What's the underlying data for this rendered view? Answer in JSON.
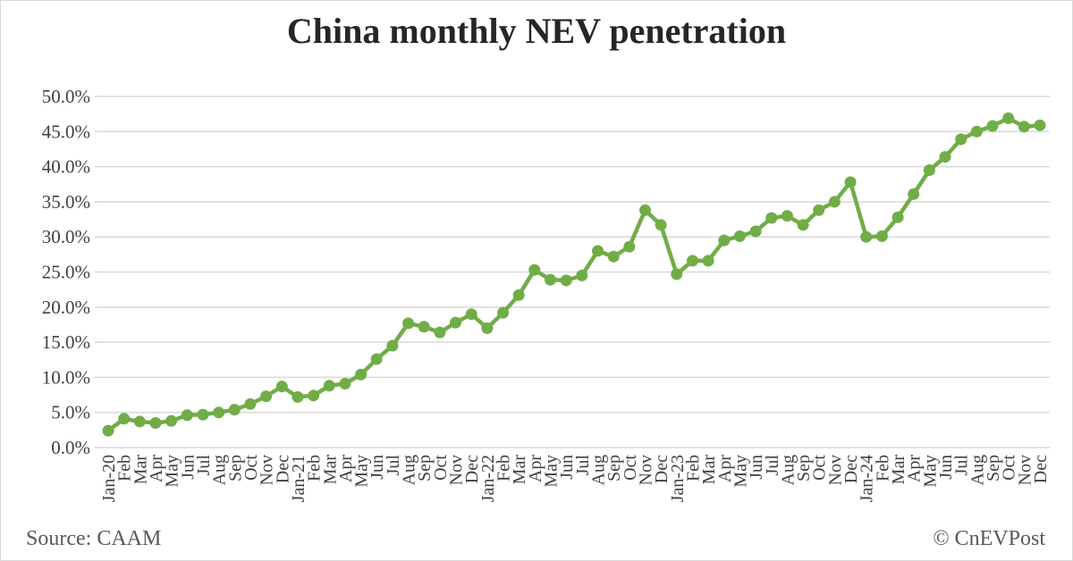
{
  "chart_data": {
    "type": "line",
    "title": "China monthly NEV penetration",
    "source_label": "Source: CAAM",
    "copyright_label": "© CnEVPost",
    "series": [
      {
        "name": "NEV penetration",
        "values": [
          2.4,
          4.1,
          3.7,
          3.5,
          3.8,
          4.6,
          4.7,
          5.0,
          5.4,
          6.2,
          7.3,
          8.7,
          7.2,
          7.4,
          8.8,
          9.1,
          10.4,
          12.6,
          14.5,
          17.7,
          17.2,
          16.4,
          17.8,
          19.0,
          17.0,
          19.2,
          21.7,
          25.3,
          23.9,
          23.8,
          24.5,
          28.0,
          27.2,
          28.6,
          33.8,
          31.7,
          24.7,
          26.6,
          26.6,
          29.5,
          30.1,
          30.8,
          32.7,
          33.0,
          31.7,
          33.8,
          35.0,
          37.8,
          30.0,
          30.1,
          32.8,
          36.1,
          39.5,
          41.4,
          43.9,
          45.0,
          45.8,
          46.9,
          45.7,
          45.9
        ]
      }
    ],
    "categories": [
      "Jan-20",
      "Feb",
      "Mar",
      "Apr",
      "May",
      "Jun",
      "Jul",
      "Aug",
      "Sep",
      "Oct",
      "Nov",
      "Dec",
      "Jan-21",
      "Feb",
      "Mar",
      "Apr",
      "May",
      "Jun",
      "Jul",
      "Aug",
      "Sep",
      "Oct",
      "Nov",
      "Dec",
      "Jan-22",
      "Feb",
      "Mar",
      "Apr",
      "May",
      "Jun",
      "Jul",
      "Aug",
      "Sep",
      "Oct",
      "Nov",
      "Dec",
      "Jan-23",
      "Feb",
      "Mar",
      "Apr",
      "May",
      "Jun",
      "Jul",
      "Aug",
      "Sep",
      "Oct",
      "Nov",
      "Dec",
      "Jan-24",
      "Feb",
      "Mar",
      "Apr",
      "May",
      "Jun",
      "Jul",
      "Aug",
      "Sep",
      "Oct",
      "Nov",
      "Dec"
    ],
    "xlabel": "",
    "ylabel": "",
    "ylim": [
      0,
      50
    ],
    "ytick_step": 5,
    "ytick_suffix": "%",
    "ytick_decimals": 1,
    "grid": true,
    "legend_position": "none",
    "marker": "circle",
    "colors": {
      "line": "#70ad47",
      "grid": "#d9d9d9",
      "axis_text": "#404040",
      "title_text": "#262626",
      "footer_text": "#595959"
    }
  }
}
